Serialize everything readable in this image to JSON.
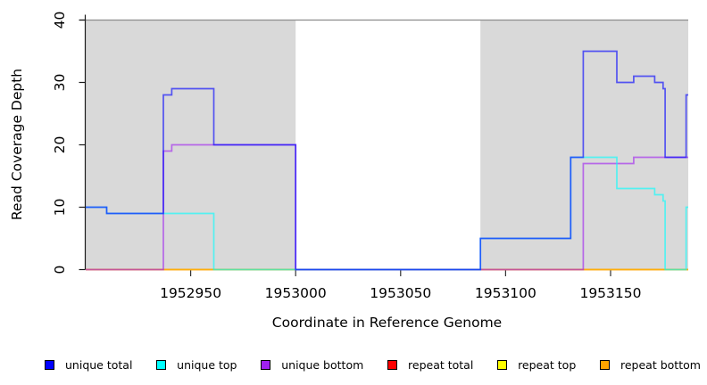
{
  "chart_data": {
    "type": "line",
    "step_mode": "post",
    "title": "",
    "xlabel": "Coordinate in Reference Genome",
    "ylabel": "Read Coverage Depth",
    "xlim": [
      1952900,
      1953187
    ],
    "ylim": [
      0,
      40
    ],
    "xticks": [
      1952950,
      1953000,
      1953050,
      1953100,
      1953150
    ],
    "yticks": [
      0,
      10,
      20,
      30,
      40
    ],
    "grid": false,
    "legend_position": "bottom",
    "plot_background": "#FFFFFF",
    "shading_color": "#D9D9D9",
    "shaded_regions": [
      {
        "name": "covered-region-left",
        "x0": 1952900,
        "x1": 1953000
      },
      {
        "name": "covered-region-right",
        "x0": 1953088,
        "x1": 1953187
      }
    ],
    "series": [
      {
        "name": "repeat total",
        "color": "#FF0000",
        "steps": [
          [
            1952900,
            0
          ]
        ]
      },
      {
        "name": "repeat top",
        "color": "#FFFF00",
        "steps": [
          [
            1952900,
            0
          ]
        ]
      },
      {
        "name": "repeat bottom",
        "color": "#FFA500",
        "steps": [
          [
            1952900,
            0
          ]
        ]
      },
      {
        "name": "unique bottom",
        "color": "#A020F0",
        "steps": [
          [
            1952900,
            0
          ],
          [
            1952937,
            19
          ],
          [
            1952941,
            20
          ],
          [
            1953000,
            0
          ],
          [
            1953137,
            17
          ],
          [
            1953161,
            18
          ]
        ]
      },
      {
        "name": "unique top",
        "color": "#00FFFF",
        "steps": [
          [
            1952900,
            10
          ],
          [
            1952910,
            9
          ],
          [
            1952961,
            0
          ],
          [
            1953088,
            5
          ],
          [
            1953131,
            18
          ],
          [
            1953153,
            13
          ],
          [
            1953171,
            12
          ],
          [
            1953175,
            11
          ],
          [
            1953176,
            0
          ],
          [
            1953186,
            10
          ]
        ]
      },
      {
        "name": "unique total",
        "color": "#0000FF",
        "steps": [
          [
            1952900,
            10
          ],
          [
            1952910,
            9
          ],
          [
            1952937,
            28
          ],
          [
            1952941,
            29
          ],
          [
            1952961,
            20
          ],
          [
            1953000,
            0
          ],
          [
            1953088,
            5
          ],
          [
            1953131,
            18
          ],
          [
            1953137,
            35
          ],
          [
            1953153,
            30
          ],
          [
            1953161,
            31
          ],
          [
            1953171,
            30
          ],
          [
            1953175,
            29
          ],
          [
            1953176,
            18
          ],
          [
            1953186,
            28
          ]
        ]
      }
    ],
    "legend": [
      {
        "label": "unique total",
        "color": "#0000FF"
      },
      {
        "label": "unique top",
        "color": "#00FFFF"
      },
      {
        "label": "unique bottom",
        "color": "#A020F0"
      },
      {
        "label": "repeat total",
        "color": "#FF0000"
      },
      {
        "label": "repeat top",
        "color": "#FFFF00"
      },
      {
        "label": "repeat bottom",
        "color": "#FFA500"
      }
    ]
  }
}
